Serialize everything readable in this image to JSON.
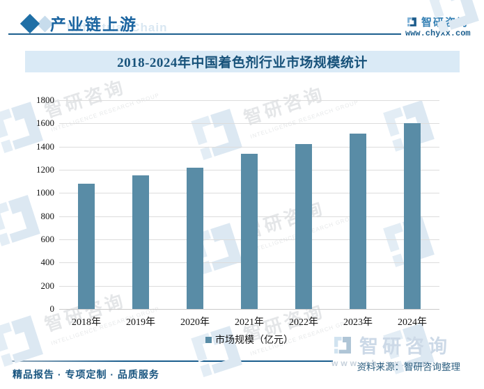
{
  "header": {
    "title": "产业链上游",
    "title_watermark": "Industrial Chain",
    "brand_name": "智研咨询",
    "site_url": "www.chyxx.com"
  },
  "chart_data": {
    "type": "bar",
    "title": "2018-2024年中国着色剂行业市场规模统计",
    "categories": [
      "2018年",
      "2019年",
      "2020年",
      "2021年",
      "2022年",
      "2023年",
      "2024年"
    ],
    "values": [
      1080,
      1150,
      1220,
      1340,
      1420,
      1510,
      1600
    ],
    "series_name": "市场规模（亿元）",
    "unit": "亿元",
    "ylim": [
      0,
      1800
    ],
    "ytick_step": 200,
    "grid": true,
    "legend_position": "bottom",
    "bar_color": "#598ca6"
  },
  "footer": {
    "slogan": "精品报告 · 专项定制 · 品质服务",
    "source": "资料来源：智研咨询整理",
    "brand_name": "智研咨询",
    "site_url": "www.chyxx.com"
  },
  "watermark": {
    "brand": "智研咨询",
    "subtitle": "INTELLIGENCE RESEARCH GROUP"
  },
  "colors": {
    "accent_blue": "#1b5e8e",
    "bar": "#598ca6",
    "banner_bg": "#daeaf6",
    "banner_text": "#17527a",
    "grid": "#dcdcdc"
  }
}
